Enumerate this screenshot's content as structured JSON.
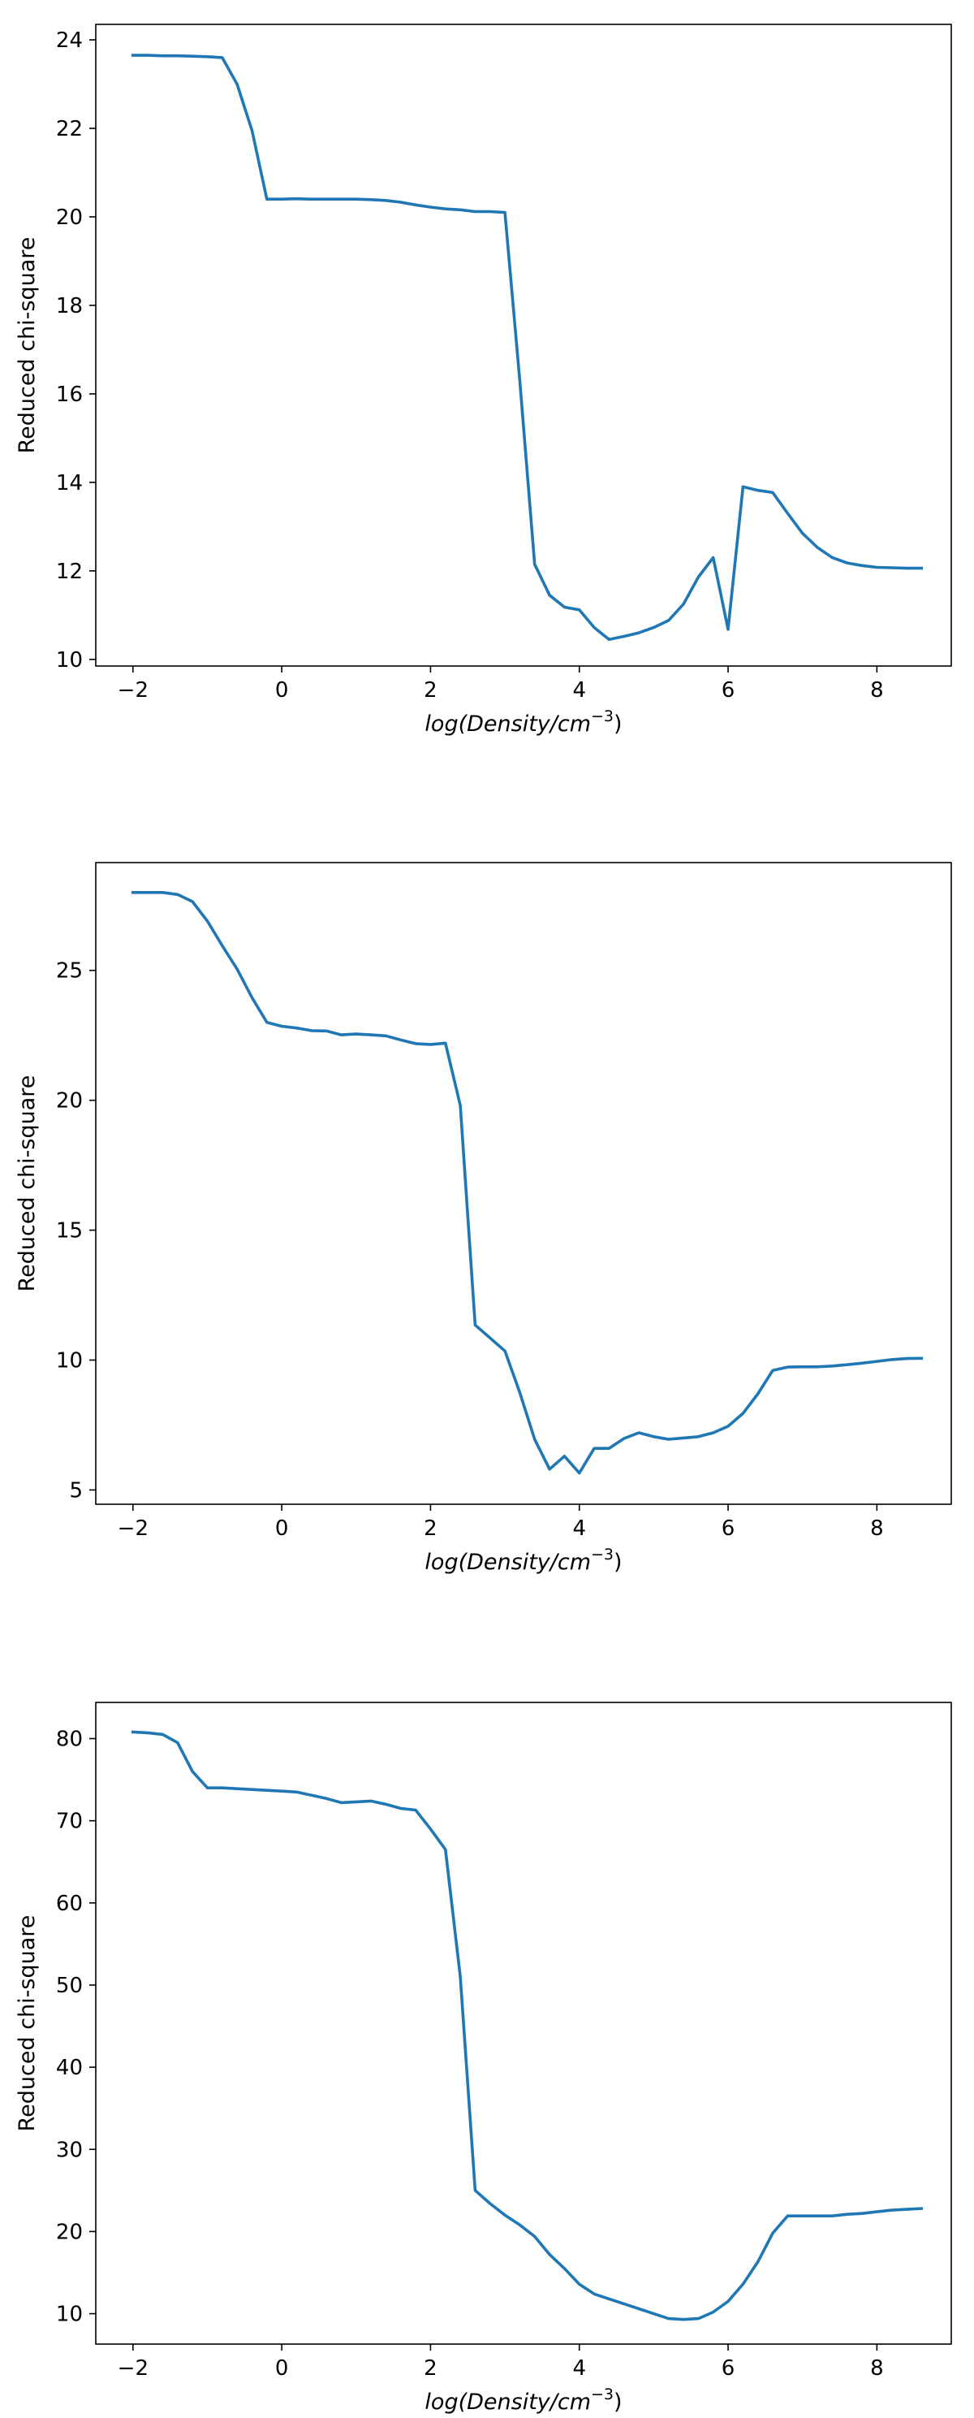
{
  "chart_data": [
    {
      "type": "line",
      "title": "",
      "xlabel": "log(Density/cm",
      "xlabel_sup": "−3",
      "xlabel_close": ")",
      "ylabel": "Reduced chi-square",
      "xlim": [
        -2.5,
        9.0
      ],
      "ylim": [
        9.85,
        24.35
      ],
      "xticks": [
        -2,
        0,
        2,
        4,
        6,
        8
      ],
      "xtick_labels": [
        "−2",
        "0",
        "2",
        "4",
        "6",
        "8"
      ],
      "yticks": [
        10,
        12,
        14,
        16,
        18,
        20,
        22,
        24
      ],
      "ytick_labels": [
        "10",
        "12",
        "14",
        "16",
        "18",
        "20",
        "22",
        "24"
      ],
      "grid": false,
      "series": [
        {
          "color": "#1f77b4",
          "x": [
            -2.0,
            -1.8,
            -1.6,
            -1.4,
            -1.2,
            -1.0,
            -0.8,
            -0.6,
            -0.4,
            -0.2,
            0.0,
            0.2,
            0.4,
            0.6,
            0.8,
            1.0,
            1.2,
            1.4,
            1.6,
            1.8,
            2.0,
            2.2,
            2.4,
            2.6,
            2.8,
            3.0,
            3.2,
            3.4,
            3.6,
            3.8,
            4.0,
            4.2,
            4.4,
            4.6,
            4.8,
            5.0,
            5.2,
            5.4,
            5.6,
            5.8,
            6.0,
            6.2,
            6.4,
            6.6,
            6.8,
            7.0,
            7.2,
            7.4,
            7.6,
            7.8,
            8.0,
            8.2,
            8.4,
            8.6
          ],
          "y": [
            23.65,
            23.65,
            23.64,
            23.64,
            23.63,
            23.62,
            23.6,
            23.0,
            21.95,
            20.4,
            20.4,
            20.41,
            20.4,
            20.4,
            20.4,
            20.4,
            20.39,
            20.37,
            20.33,
            20.27,
            20.22,
            20.18,
            20.16,
            20.12,
            20.12,
            20.1,
            16.3,
            12.15,
            11.45,
            11.18,
            11.12,
            10.72,
            10.45,
            10.52,
            10.6,
            10.72,
            10.88,
            11.25,
            11.86,
            12.3,
            10.68,
            13.9,
            13.82,
            13.77,
            13.3,
            12.85,
            12.53,
            12.3,
            12.18,
            12.12,
            12.08,
            12.07,
            12.06,
            12.06
          ]
        }
      ]
    },
    {
      "type": "line",
      "title": "",
      "xlabel": "log(Density/cm",
      "xlabel_sup": "−3",
      "xlabel_close": ")",
      "ylabel": "Reduced chi-square",
      "xlim": [
        -2.5,
        9.0
      ],
      "ylim": [
        4.45,
        29.15
      ],
      "xticks": [
        -2,
        0,
        2,
        4,
        6,
        8
      ],
      "xtick_labels": [
        "−2",
        "0",
        "2",
        "4",
        "6",
        "8"
      ],
      "yticks": [
        5,
        10,
        15,
        20,
        25
      ],
      "ytick_labels": [
        "5",
        "10",
        "15",
        "20",
        "25"
      ],
      "grid": false,
      "series": [
        {
          "color": "#1f77b4",
          "x": [
            -2.0,
            -1.8,
            -1.6,
            -1.4,
            -1.2,
            -1.0,
            -0.8,
            -0.6,
            -0.4,
            -0.2,
            0.0,
            0.2,
            0.4,
            0.6,
            0.8,
            1.0,
            1.2,
            1.4,
            1.6,
            1.8,
            2.0,
            2.2,
            2.4,
            2.6,
            2.8,
            3.0,
            3.2,
            3.4,
            3.6,
            3.8,
            4.0,
            4.2,
            4.4,
            4.6,
            4.8,
            5.0,
            5.2,
            5.4,
            5.6,
            5.8,
            6.0,
            6.2,
            6.4,
            6.6,
            6.8,
            7.0,
            7.2,
            7.4,
            7.6,
            7.8,
            8.0,
            8.2,
            8.4,
            8.6
          ],
          "y": [
            28.0,
            28.0,
            28.0,
            27.92,
            27.65,
            26.9,
            25.95,
            25.05,
            23.95,
            23.0,
            22.85,
            22.78,
            22.68,
            22.67,
            22.52,
            22.55,
            22.52,
            22.48,
            22.32,
            22.18,
            22.15,
            22.2,
            19.8,
            11.35,
            10.85,
            10.35,
            8.75,
            6.95,
            5.8,
            6.3,
            5.65,
            6.6,
            6.6,
            6.98,
            7.2,
            7.05,
            6.95,
            7.0,
            7.05,
            7.2,
            7.45,
            7.95,
            8.7,
            9.6,
            9.73,
            9.74,
            9.74,
            9.77,
            9.82,
            9.88,
            9.95,
            10.02,
            10.06,
            10.07
          ]
        }
      ]
    },
    {
      "type": "line",
      "title": "",
      "xlabel": "log(Density/cm",
      "xlabel_sup": "−3",
      "xlabel_close": ")",
      "ylabel": "Reduced chi-square",
      "xlim": [
        -2.5,
        9.0
      ],
      "ylim": [
        6.3,
        84.4
      ],
      "xticks": [
        -2,
        0,
        2,
        4,
        6,
        8
      ],
      "xtick_labels": [
        "−2",
        "0",
        "2",
        "4",
        "6",
        "8"
      ],
      "yticks": [
        10,
        20,
        30,
        40,
        50,
        60,
        70,
        80
      ],
      "ytick_labels": [
        "10",
        "20",
        "30",
        "40",
        "50",
        "60",
        "70",
        "80"
      ],
      "grid": false,
      "series": [
        {
          "color": "#1f77b4",
          "x": [
            -2.0,
            -1.8,
            -1.6,
            -1.4,
            -1.2,
            -1.0,
            -0.8,
            -0.6,
            -0.4,
            -0.2,
            0.0,
            0.2,
            0.4,
            0.6,
            0.8,
            1.0,
            1.2,
            1.4,
            1.6,
            1.8,
            2.0,
            2.2,
            2.4,
            2.6,
            2.8,
            3.0,
            3.2,
            3.4,
            3.6,
            3.8,
            4.0,
            4.2,
            4.4,
            4.6,
            4.8,
            5.0,
            5.2,
            5.4,
            5.6,
            5.8,
            6.0,
            6.2,
            6.4,
            6.6,
            6.8,
            7.0,
            7.2,
            7.4,
            7.6,
            7.8,
            8.0,
            8.2,
            8.4,
            8.6
          ],
          "y": [
            80.8,
            80.7,
            80.5,
            79.5,
            76.0,
            74.0,
            74.0,
            73.9,
            73.8,
            73.7,
            73.6,
            73.5,
            73.1,
            72.7,
            72.2,
            72.3,
            72.4,
            72.0,
            71.5,
            71.3,
            69.0,
            66.5,
            51.0,
            25.0,
            23.4,
            22.0,
            20.8,
            19.4,
            17.2,
            15.5,
            13.6,
            12.4,
            11.8,
            11.2,
            10.6,
            10.0,
            9.4,
            9.3,
            9.4,
            10.2,
            11.5,
            13.6,
            16.3,
            19.8,
            21.9,
            21.9,
            21.9,
            21.9,
            22.1,
            22.2,
            22.4,
            22.6,
            22.7,
            22.8
          ]
        }
      ]
    }
  ]
}
